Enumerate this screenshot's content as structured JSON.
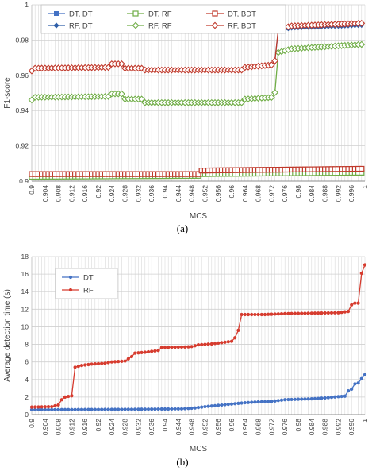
{
  "chart_data": [
    {
      "type": "line",
      "caption": "(a)",
      "xlabel": "MCS",
      "ylabel": "F1-score",
      "xlim": [
        0.9,
        1
      ],
      "ylim": [
        0.9,
        1
      ],
      "yticks": [
        0.9,
        0.92,
        0.94,
        0.96,
        0.98,
        1
      ],
      "ytick_labels": [
        "0.9",
        "0.92",
        "0.94",
        "0.96",
        "0.98",
        "1"
      ],
      "xticks": [
        0.9,
        0.904,
        0.908,
        0.912,
        0.916,
        0.92,
        0.924,
        0.928,
        0.932,
        0.936,
        0.94,
        0.944,
        0.948,
        0.952,
        0.956,
        0.96,
        0.964,
        0.968,
        0.972,
        0.976,
        0.98,
        0.984,
        0.988,
        0.992,
        0.996,
        1
      ],
      "xtick_labels": [
        "0.9",
        "0.904",
        "0.908",
        "0.912",
        "0.916",
        "0.92",
        "0.924",
        "0.928",
        "0.932",
        "0.936",
        "0.94",
        "0.944",
        "0.948",
        "0.952",
        "0.956",
        "0.96",
        "0.964",
        "0.968",
        "0.972",
        "0.976",
        "0.98",
        "0.984",
        "0.988",
        "0.992",
        "0.996",
        "1"
      ],
      "grid": true,
      "legend_position": "top-left",
      "series": [
        {
          "name": "DT, DT",
          "color": "#4472c4",
          "marker": "square",
          "points": [
            [
              0.9,
              0.9035
            ],
            [
              0.95,
              0.9035
            ],
            [
              0.9505,
              0.9045
            ],
            [
              0.999,
              0.9045
            ]
          ]
        },
        {
          "name": "DT, RF",
          "color": "#70ad47",
          "marker": "square-open",
          "points": [
            [
              0.9,
              0.9025
            ],
            [
              0.95,
              0.903
            ],
            [
              0.9505,
              0.904
            ],
            [
              0.999,
              0.9048
            ]
          ]
        },
        {
          "name": "DT, BDT",
          "color": "#c0392b",
          "marker": "square-open",
          "points": [
            [
              0.9,
              0.904
            ],
            [
              0.95,
              0.904
            ],
            [
              0.9505,
              0.906
            ],
            [
              0.999,
              0.907
            ]
          ]
        },
        {
          "name": "RF, DT",
          "color": "#2e5ea8",
          "marker": "diamond",
          "points": [
            [
              0.9,
              0.9625
            ],
            [
              0.9005,
              0.964
            ],
            [
              0.9235,
              0.9645
            ],
            [
              0.924,
              0.9665
            ],
            [
              0.9275,
              0.9665
            ],
            [
              0.928,
              0.964
            ],
            [
              0.9335,
              0.964
            ],
            [
              0.934,
              0.963
            ],
            [
              0.9635,
              0.963
            ],
            [
              0.964,
              0.9645
            ],
            [
              0.9725,
              0.966
            ],
            [
              0.9735,
              0.971
            ],
            [
              0.974,
              0.9855
            ],
            [
              0.978,
              0.987
            ],
            [
              0.999,
              0.9885
            ]
          ]
        },
        {
          "name": "RF, RF",
          "color": "#70ad47",
          "marker": "diamond-open",
          "points": [
            [
              0.9,
              0.946
            ],
            [
              0.9005,
              0.9475
            ],
            [
              0.9235,
              0.948
            ],
            [
              0.924,
              0.9495
            ],
            [
              0.9275,
              0.9495
            ],
            [
              0.928,
              0.9465
            ],
            [
              0.9335,
              0.9465
            ],
            [
              0.934,
              0.9445
            ],
            [
              0.9635,
              0.9445
            ],
            [
              0.964,
              0.9465
            ],
            [
              0.9725,
              0.9475
            ],
            [
              0.9735,
              0.953
            ],
            [
              0.974,
              0.973
            ],
            [
              0.978,
              0.975
            ],
            [
              0.999,
              0.9775
            ]
          ]
        },
        {
          "name": "RF, BDT",
          "color": "#c0392b",
          "marker": "diamond-open",
          "points": [
            [
              0.9,
              0.9625
            ],
            [
              0.9005,
              0.964
            ],
            [
              0.9235,
              0.9645
            ],
            [
              0.924,
              0.9665
            ],
            [
              0.9275,
              0.9665
            ],
            [
              0.928,
              0.964
            ],
            [
              0.9335,
              0.964
            ],
            [
              0.934,
              0.963
            ],
            [
              0.9635,
              0.963
            ],
            [
              0.964,
              0.9645
            ],
            [
              0.9725,
              0.966
            ],
            [
              0.9735,
              0.9705
            ],
            [
              0.974,
              0.986
            ],
            [
              0.978,
              0.988
            ],
            [
              0.999,
              0.9895
            ]
          ]
        }
      ]
    },
    {
      "type": "line",
      "caption": "(b)",
      "xlabel": "MCS",
      "ylabel": "Average detection time (s)",
      "xlim": [
        0.9,
        1
      ],
      "ylim": [
        0,
        18
      ],
      "yticks": [
        0,
        2,
        4,
        6,
        8,
        10,
        12,
        14,
        16,
        18
      ],
      "ytick_labels": [
        "0",
        "2",
        "4",
        "6",
        "8",
        "10",
        "12",
        "14",
        "16",
        "18"
      ],
      "xticks": [
        0.9,
        0.904,
        0.908,
        0.912,
        0.916,
        0.92,
        0.924,
        0.928,
        0.932,
        0.936,
        0.94,
        0.944,
        0.948,
        0.952,
        0.956,
        0.96,
        0.964,
        0.968,
        0.972,
        0.976,
        0.98,
        0.984,
        0.988,
        0.992,
        0.996,
        1
      ],
      "xtick_labels": [
        "0.9",
        "0.904",
        "0.908",
        "0.912",
        "0.916",
        "0.92",
        "0.924",
        "0.928",
        "0.932",
        "0.936",
        "0.94",
        "0.944",
        "0.948",
        "0.952",
        "0.956",
        "0.96",
        "0.964",
        "0.968",
        "0.972",
        "0.976",
        "0.98",
        "0.984",
        "0.988",
        "0.992",
        "0.996",
        "1"
      ],
      "grid": true,
      "legend_position": "top-left",
      "series": [
        {
          "name": "DT",
          "color": "#4472c4",
          "marker": "circle",
          "points": [
            [
              0.9,
              0.55
            ],
            [
              0.93,
              0.6
            ],
            [
              0.945,
              0.65
            ],
            [
              0.949,
              0.75
            ],
            [
              0.952,
              0.9
            ],
            [
              0.956,
              1.05
            ],
            [
              0.96,
              1.2
            ],
            [
              0.964,
              1.35
            ],
            [
              0.968,
              1.45
            ],
            [
              0.972,
              1.5
            ],
            [
              0.976,
              1.7
            ],
            [
              0.98,
              1.75
            ],
            [
              0.984,
              1.8
            ],
            [
              0.988,
              1.9
            ],
            [
              0.992,
              2.05
            ],
            [
              0.994,
              2.1
            ],
            [
              0.995,
              2.7
            ],
            [
              0.996,
              2.9
            ],
            [
              0.997,
              3.5
            ],
            [
              0.998,
              3.6
            ],
            [
              0.999,
              4.1
            ],
            [
              1.0,
              4.55
            ]
          ]
        },
        {
          "name": "RF",
          "color": "#d63b2e",
          "marker": "circle",
          "points": [
            [
              0.9,
              0.85
            ],
            [
              0.906,
              0.9
            ],
            [
              0.908,
              1.1
            ],
            [
              0.909,
              1.7
            ],
            [
              0.91,
              2.0
            ],
            [
              0.912,
              2.15
            ],
            [
              0.913,
              5.4
            ],
            [
              0.915,
              5.6
            ],
            [
              0.918,
              5.75
            ],
            [
              0.922,
              5.85
            ],
            [
              0.924,
              6.0
            ],
            [
              0.928,
              6.1
            ],
            [
              0.93,
              6.6
            ],
            [
              0.931,
              7.0
            ],
            [
              0.934,
              7.1
            ],
            [
              0.938,
              7.3
            ],
            [
              0.939,
              7.65
            ],
            [
              0.946,
              7.7
            ],
            [
              0.948,
              7.75
            ],
            [
              0.95,
              7.95
            ],
            [
              0.954,
              8.05
            ],
            [
              0.957,
              8.2
            ],
            [
              0.96,
              8.35
            ],
            [
              0.961,
              8.75
            ],
            [
              0.962,
              9.6
            ],
            [
              0.963,
              11.4
            ],
            [
              0.97,
              11.4
            ],
            [
              0.976,
              11.5
            ],
            [
              0.984,
              11.55
            ],
            [
              0.992,
              11.6
            ],
            [
              0.995,
              11.75
            ],
            [
              0.996,
              12.5
            ],
            [
              0.997,
              12.7
            ],
            [
              0.998,
              12.7
            ],
            [
              0.999,
              16.1
            ],
            [
              1.0,
              17.05
            ]
          ]
        }
      ]
    }
  ]
}
